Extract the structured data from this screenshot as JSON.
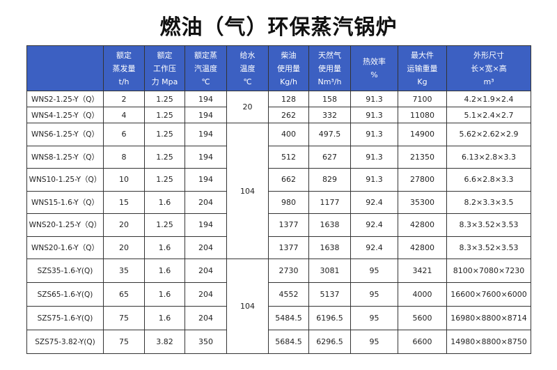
{
  "header": {
    "title": "燃油（气）环保蒸汽锅炉"
  },
  "table": {
    "columns": [
      [],
      [
        "额定",
        "蒸发量",
        "t/h"
      ],
      [
        "额定",
        "工作压",
        "力 Mpa"
      ],
      [
        "额定蒸",
        "汽温度",
        "℃"
      ],
      [
        "给水",
        "温度",
        "℃"
      ],
      [
        "柴油",
        "使用量",
        "Kg/h"
      ],
      [
        "天然气",
        "使用量",
        "Nm³/h"
      ],
      [
        "热效率",
        "%"
      ],
      [
        "最大件",
        "运输重量",
        "Kg"
      ],
      [
        "外形尺寸",
        "长×宽×高",
        "m³"
      ]
    ],
    "feed_water": [
      "20",
      "104",
      "104"
    ],
    "rows": [
      [
        "WNS2-1.25-Y（Q）",
        "2",
        "1.25",
        "194",
        "128",
        "158",
        "91.3",
        "7100",
        "4.2×1.9×2.4"
      ],
      [
        "WNS4-1.25-Y（Q）",
        "4",
        "1.25",
        "194",
        "262",
        "332",
        "91.3",
        "11080",
        "5.1×2.4×2.7"
      ],
      [
        "WNS6-1.25-Y（Q）",
        "6",
        "1.25",
        "194",
        "400",
        "497.5",
        "91.3",
        "14900",
        "5.62×2.62×2.9"
      ],
      [
        "WNS8-1.25-Y（Q）",
        "8",
        "1.25",
        "194",
        "512",
        "627",
        "91.3",
        "21350",
        "6.13×2.8×3.3"
      ],
      [
        "WNS10-1.25-Y（Q）",
        "10",
        "1.25",
        "194",
        "662",
        "829",
        "91.3",
        "27800",
        "6.6×2.8×3.3"
      ],
      [
        "WNS15-1.6-Y（Q）",
        "15",
        "1.6",
        "204",
        "980",
        "1177",
        "92.4",
        "35300",
        "8.2×3.3×3.5"
      ],
      [
        "WNS20-1.25-Y（Q）",
        "20",
        "1.25",
        "194",
        "1377",
        "1638",
        "92.4",
        "42800",
        "8.3×3.52×3.53"
      ],
      [
        "WNS20-1.6-Y（Q）",
        "20",
        "1.6",
        "204",
        "1377",
        "1638",
        "92.4",
        "42800",
        "8.3×3.52×3.53"
      ],
      [
        "SZS35-1.6-Y(Q)",
        "35",
        "1.6",
        "204",
        "2730",
        "3081",
        "95",
        "3421",
        "8100×7080×7230"
      ],
      [
        "SZS65-1.6-Y(Q)",
        "65",
        "1.6",
        "204",
        "4552",
        "5137",
        "95",
        "4000",
        "16600×7600×6000"
      ],
      [
        "SZS75-1.6-Y(Q)",
        "75",
        "1.6",
        "204",
        "5484.5",
        "6196.5",
        "95",
        "5600",
        "16980×8800×8714"
      ],
      [
        "SZS75-3.82-Y(Q)",
        "75",
        "3.82",
        "350",
        "5684.5",
        "6296.5",
        "95",
        "6600",
        "14980×8800×8750"
      ]
    ]
  }
}
